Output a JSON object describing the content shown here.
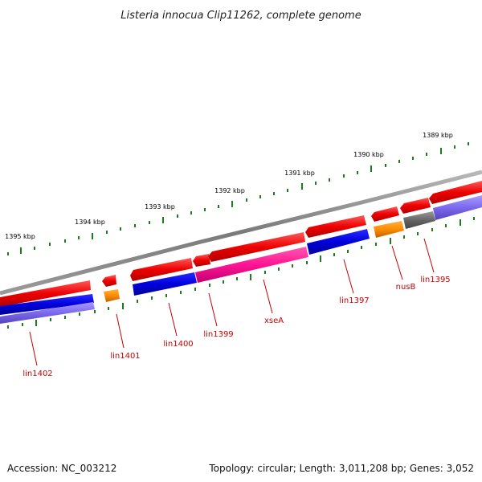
{
  "title": "Listeria innocua Clip11262, complete genome",
  "footer": {
    "accession": "Accession: NC_003212",
    "summary": "Topology: circular; Length: 3,011,208 bp; Genes: 3,052"
  },
  "colors": {
    "backbone": "#8a8a8a",
    "tick": "#1f7a1f",
    "label": "#c80000",
    "cds_forward": "#ee0000",
    "cds_reverse_blue": "#0000dd",
    "cds_reverse_magenta": "#ff1493",
    "cds_orange": "#ff8c00",
    "cds_gray": "#666666",
    "cds_lavender": "#7b68ee"
  },
  "kbp_labels": [
    "1389 kbp",
    "1390 kbp",
    "1391 kbp",
    "1392 kbp",
    "1393 kbp",
    "1394 kbp",
    "1395 kbp"
  ],
  "gene_labels": [
    "lin1395",
    "nusB",
    "lin1397",
    "xseA",
    "lin1399",
    "lin1400",
    "lin1401",
    "lin1402"
  ]
}
